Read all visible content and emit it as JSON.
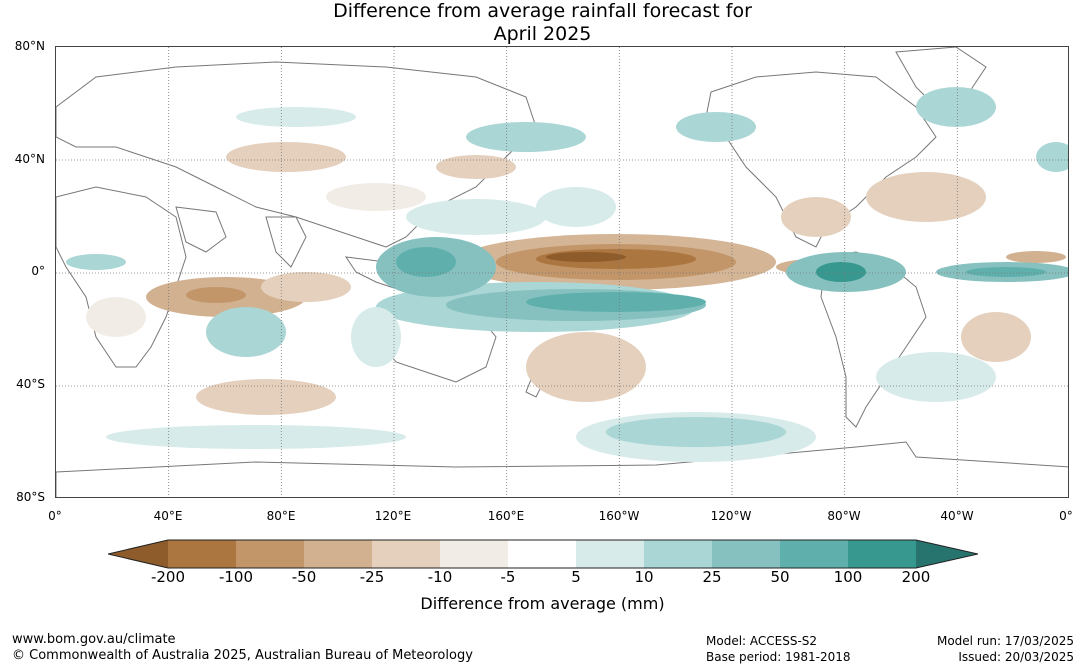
{
  "title_line1": "Difference from average rainfall forecast for",
  "title_line2": "April 2025",
  "lat_labels": [
    "80°N",
    "40°N",
    "0°",
    "40°S",
    "80°S"
  ],
  "lon_labels": [
    "0°",
    "40°E",
    "80°E",
    "120°E",
    "160°E",
    "160°W",
    "120°W",
    "80°W",
    "40°W",
    "0°"
  ],
  "legend": {
    "title": "Difference from average (mm)",
    "ticks": [
      "-200",
      "-100",
      "-50",
      "-25",
      "-10",
      "-5",
      "5",
      "10",
      "25",
      "50",
      "100",
      "200"
    ],
    "colors": [
      "#8e5c2a",
      "#ac7640",
      "#c3966a",
      "#d2b190",
      "#e4d0bd",
      "#f2ece6",
      "#ffffff",
      "#d6ebea",
      "#aad6d5",
      "#86c1c0",
      "#5fb0ad",
      "#36988f",
      "#27736d"
    ]
  },
  "footer": {
    "website": "www.bom.gov.au/climate",
    "copyright": "© Commonwealth of Australia 2025, Australian Bureau of Meteorology",
    "model": "Model: ACCESS-S2",
    "base_period": "Base period: 1981-2018",
    "model_run": "Model run: 17/03/2025",
    "issued": "Issued: 20/03/2025"
  }
}
